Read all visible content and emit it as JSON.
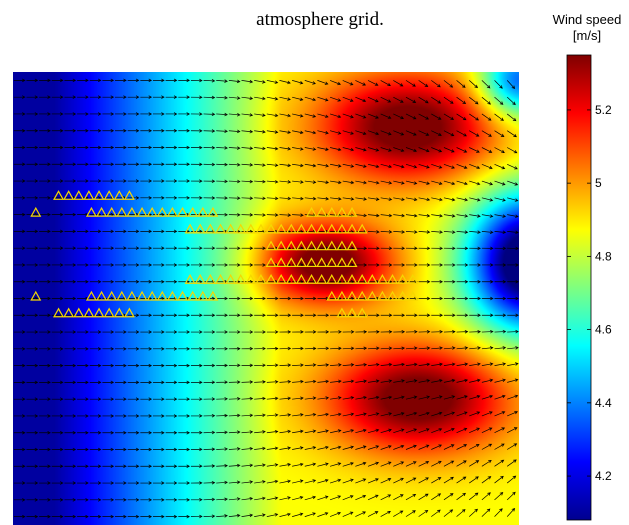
{
  "title": "atmosphere grid.",
  "chart_data": {
    "type": "heatmap",
    "title": "atmosphere grid.",
    "xlabel": "",
    "ylabel": "",
    "grid": false,
    "colorbar": {
      "label_line1": "Wind speed",
      "label_line2": "[m/s]",
      "range": [
        4.08,
        5.35
      ],
      "ticks": [
        "4.2",
        "4.4",
        "4.6",
        "4.8",
        "5",
        "5.2"
      ],
      "tick_values": [
        4.2,
        4.4,
        4.6,
        4.8,
        5.0,
        5.2
      ],
      "colormap": "jet"
    },
    "field": {
      "description_free": true,
      "min": 4.08,
      "max": 5.35,
      "high_lobes": [
        {
          "cx": 0.78,
          "cy": 0.12,
          "value": 5.3
        },
        {
          "cx": 0.62,
          "cy": 0.42,
          "value": 5.25
        },
        {
          "cx": 0.78,
          "cy": 0.72,
          "value": 5.3
        }
      ],
      "low_regions": [
        "left",
        "right-middle"
      ]
    },
    "arrows": {
      "rows": 27,
      "cols": 40,
      "color": "#000000"
    },
    "markers": {
      "symbol": "triangle",
      "color": "#f5d800",
      "rows": [
        {
          "row": 7,
          "positions": [
            0.09,
            0.11,
            0.13,
            0.15,
            0.17,
            0.19,
            0.21,
            0.23
          ]
        },
        {
          "row": 8,
          "positions": [
            0.045,
            0.155,
            0.175,
            0.195,
            0.215,
            0.235,
            0.255,
            0.275,
            0.295,
            0.315,
            0.335,
            0.355,
            0.375,
            0.395,
            0.59,
            0.61,
            0.63,
            0.65,
            0.67
          ]
        },
        {
          "row": 9,
          "positions": [
            0.35,
            0.37,
            0.39,
            0.41,
            0.43,
            0.45,
            0.47,
            0.49,
            0.51,
            0.53,
            0.55,
            0.57,
            0.59,
            0.61,
            0.63,
            0.65,
            0.67,
            0.69
          ]
        },
        {
          "row": 10,
          "positions": [
            0.51,
            0.53,
            0.55,
            0.57,
            0.59,
            0.61,
            0.63,
            0.65,
            0.67
          ]
        },
        {
          "row": 11,
          "positions": [
            0.51,
            0.53,
            0.55,
            0.57,
            0.59,
            0.61,
            0.63,
            0.65,
            0.67
          ]
        },
        {
          "row": 12,
          "positions": [
            0.35,
            0.37,
            0.39,
            0.41,
            0.43,
            0.45,
            0.47,
            0.49,
            0.51,
            0.53,
            0.55,
            0.57,
            0.59,
            0.61,
            0.63,
            0.65,
            0.67,
            0.69,
            0.71,
            0.73,
            0.75,
            0.77,
            0.79
          ]
        },
        {
          "row": 13,
          "positions": [
            0.045,
            0.155,
            0.175,
            0.195,
            0.215,
            0.235,
            0.255,
            0.275,
            0.295,
            0.315,
            0.335,
            0.355,
            0.375,
            0.395,
            0.63,
            0.65,
            0.67,
            0.69,
            0.71,
            0.73,
            0.75,
            0.77,
            0.79
          ]
        },
        {
          "row": 14,
          "positions": [
            0.09,
            0.11,
            0.13,
            0.15,
            0.17,
            0.19,
            0.21,
            0.23,
            0.65,
            0.67,
            0.69
          ]
        }
      ]
    }
  }
}
